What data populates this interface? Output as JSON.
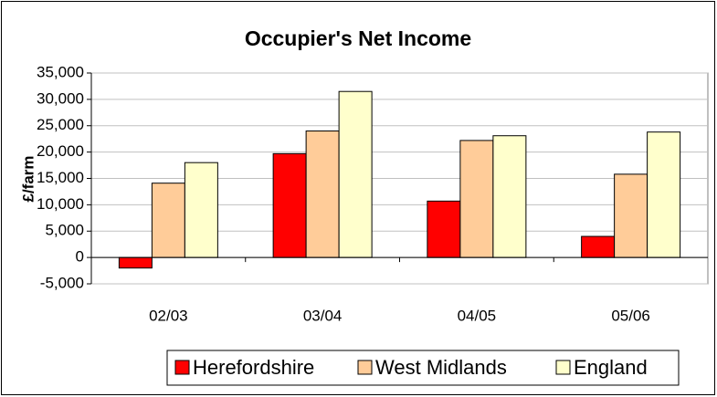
{
  "chart_data": {
    "type": "bar",
    "title": "Occupier's Net Income",
    "y_label": "£/farm",
    "categories": [
      "02/03",
      "03/04",
      "04/05",
      "05/06"
    ],
    "series": [
      {
        "name": "Herefordshire",
        "color": "#ff0000",
        "values": [
          -2000,
          19700,
          10700,
          4000
        ]
      },
      {
        "name": "West Midlands",
        "color": "#ffcc99",
        "values": [
          14100,
          24000,
          22200,
          15800
        ]
      },
      {
        "name": "England",
        "color": "#ffffcc",
        "values": [
          18000,
          31500,
          23100,
          23800
        ]
      }
    ],
    "ylim": [
      -5000,
      35000
    ],
    "yticks": [
      {
        "value": -5000,
        "label": "-5,000"
      },
      0,
      {
        "value": 5000,
        "label": "5,000"
      },
      {
        "value": 10000,
        "label": "10,000"
      },
      {
        "value": 15000,
        "label": "15,000"
      },
      {
        "value": 20000,
        "label": "20,000"
      },
      {
        "value": 25000,
        "label": "25,000"
      },
      {
        "value": 30000,
        "label": "30,000"
      },
      {
        "value": 35000,
        "label": "35,000"
      }
    ],
    "grid": true,
    "legend": "bottom"
  }
}
